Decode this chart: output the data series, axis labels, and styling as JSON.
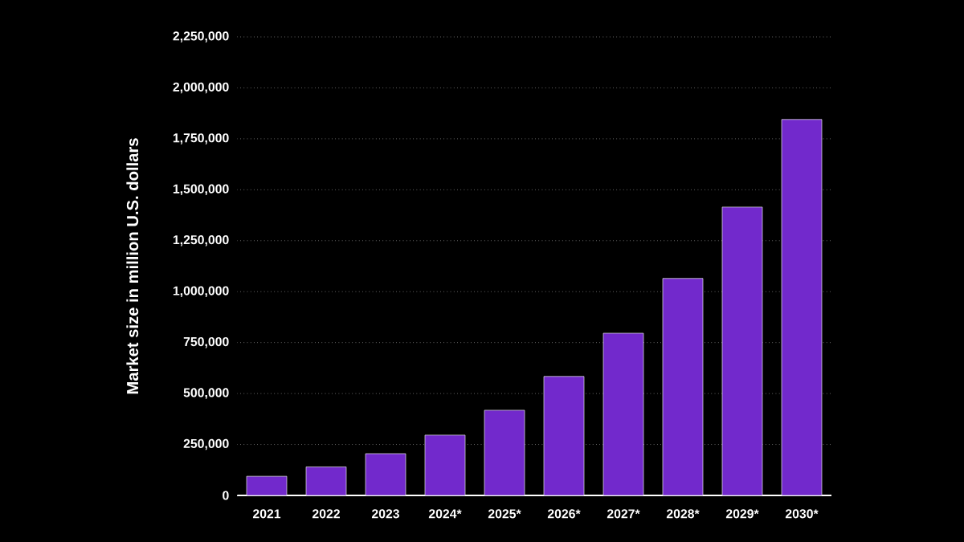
{
  "chart_data": {
    "type": "bar",
    "ylabel": "Market size in million U.S. dollars",
    "categories": [
      "2021",
      "2022",
      "2023",
      "2024*",
      "2025*",
      "2026*",
      "2027*",
      "2028*",
      "2029*",
      "2030*"
    ],
    "values": [
      94000,
      140000,
      205000,
      296000,
      418000,
      584000,
      796000,
      1065000,
      1415000,
      1845000
    ],
    "color": "#7229cc",
    "ylim": [
      0,
      2250000
    ],
    "yticks": [
      {
        "value": 0,
        "label": "0"
      },
      {
        "value": 250000,
        "label": "250,000"
      },
      {
        "value": 500000,
        "label": "500,000"
      },
      {
        "value": 750000,
        "label": "750,000"
      },
      {
        "value": 1000000,
        "label": "1,000,000"
      },
      {
        "value": 1250000,
        "label": "1,250,000"
      },
      {
        "value": 1500000,
        "label": "1,500,000"
      },
      {
        "value": 1750000,
        "label": "1,750,000"
      },
      {
        "value": 2000000,
        "label": "2,000,000"
      },
      {
        "value": 2250000,
        "label": "2,250,000"
      }
    ],
    "grid": "y"
  }
}
